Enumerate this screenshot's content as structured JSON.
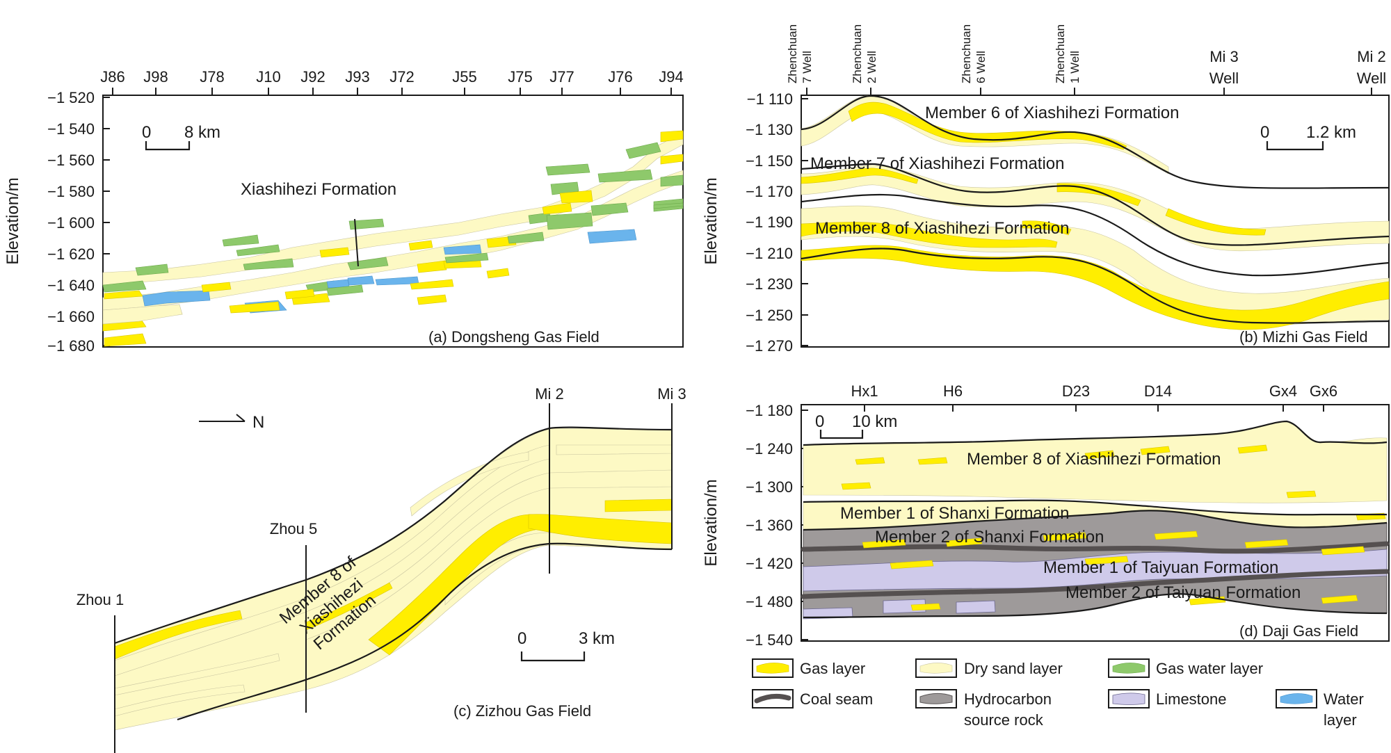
{
  "panel_a": {
    "caption": "(a) Dongsheng Gas Field",
    "ylabel": "Elevation/m",
    "yticks": [
      "−1 520",
      "−1 540",
      "−1 560",
      "−1 580",
      "−1 600",
      "−1 620",
      "−1 640",
      "−1 660",
      "−1 680"
    ],
    "wells": [
      "J86",
      "J98",
      "J78",
      "J10",
      "J92",
      "J93",
      "J72",
      "J55",
      "J75",
      "J77",
      "J76",
      "J94"
    ],
    "scale_start": "0",
    "scale_end": "8 km",
    "formation_label": "Xiashihezi Formation"
  },
  "panel_b": {
    "caption": "(b) Mizhi Gas Field",
    "ylabel": "Elevation/m",
    "yticks": [
      "−1 110",
      "−1 130",
      "−1 150",
      "−1 170",
      "−1 190",
      "−1 210",
      "−1 230",
      "−1 250",
      "−1 270"
    ],
    "rotated_wells": [
      [
        "Zhenchuan",
        "7 Well"
      ],
      [
        "Zhenchuan",
        "2 Well"
      ],
      [
        "Zhenchuan",
        "6 Well"
      ],
      [
        "Zhenchuan",
        "1 Well"
      ]
    ],
    "wells": [
      [
        "Mi 3",
        "Well"
      ],
      [
        "Mi 2",
        "Well"
      ]
    ],
    "scale_start": "0",
    "scale_end": "1.2 km",
    "member6": "Member 6 of Xiashihezi Formation",
    "member7": "Member 7 of Xiashihezi Formation",
    "member8": "Member 8 of Xiashihezi Formation"
  },
  "panel_c": {
    "caption": "(c) Zizhou Gas Field",
    "wells": [
      "Zhou 1",
      "Zhou 5",
      "Mi 2",
      "Mi 3"
    ],
    "north": "N",
    "scale_start": "0",
    "scale_end": "3 km",
    "member_lines": [
      "Member 8 of",
      "Xiashihezi",
      "Formation"
    ]
  },
  "panel_d": {
    "caption": "(d) Daji Gas Field",
    "ylabel": "Elevation/m",
    "yticks": [
      "−1 180",
      "−1 240",
      "−1 300",
      "−1 360",
      "−1 420",
      "−1 480",
      "−1 540"
    ],
    "wells": [
      "Hx1",
      "H6",
      "D23",
      "D14",
      "Gx4",
      "Gx6"
    ],
    "scale_start": "0",
    "scale_end": "10 km",
    "member8": "Member 8 of Xiashihezi Formation",
    "shanxi1": "Member 1 of Shanxi Formation",
    "shanxi2": "Member 2 of Shanxi Formation",
    "taiyuan1": "Member 1 of Taiyuan Formation",
    "taiyuan2": "Member 2 of Taiyuan Formation"
  },
  "legend": {
    "gas": "Gas layer",
    "dry": "Dry sand layer",
    "gaswater": "Gas water layer",
    "coal": "Coal seam",
    "source": [
      "Hydrocarbon",
      "source rock"
    ],
    "limestone": "Limestone",
    "water": [
      "Water",
      "layer"
    ]
  },
  "colors": {
    "gas": "#ffee00",
    "dry_sand": "#fdf9c4",
    "gas_water": "#8ec96b",
    "water": "#6ab4ec",
    "source_rock": "#9e9a9a",
    "coal": "#555050",
    "limestone": "#cfcaea"
  }
}
